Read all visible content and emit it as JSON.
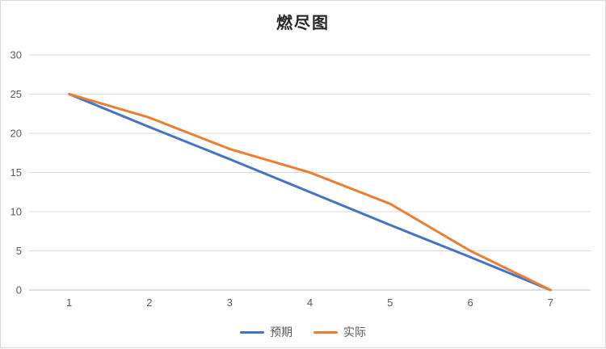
{
  "chart_data": {
    "type": "line",
    "title": "燃尽图",
    "x": [
      1,
      2,
      3,
      4,
      5,
      6,
      7
    ],
    "series": [
      {
        "name": "预期",
        "color": "#4472C4",
        "values": [
          25,
          20.8,
          16.7,
          12.5,
          8.3,
          4.2,
          0
        ]
      },
      {
        "name": "实际",
        "color": "#ED7D31",
        "values": [
          25,
          22,
          18,
          15,
          11,
          5,
          0
        ]
      }
    ],
    "xlabel": "",
    "ylabel": "",
    "ylim": [
      0,
      30
    ],
    "yticks": [
      0,
      5,
      10,
      15,
      20,
      25,
      30
    ],
    "grid": true,
    "legend_position": "bottom"
  },
  "colors": {
    "background": "#FFFFFF",
    "border": "#D9D9D9",
    "gridline": "#D9D9D9",
    "axis_line": "#BFBFBF",
    "tick_text": "#595959",
    "title_text": "#262626",
    "series_expected": "#4472C4",
    "series_actual": "#ED7D31"
  }
}
